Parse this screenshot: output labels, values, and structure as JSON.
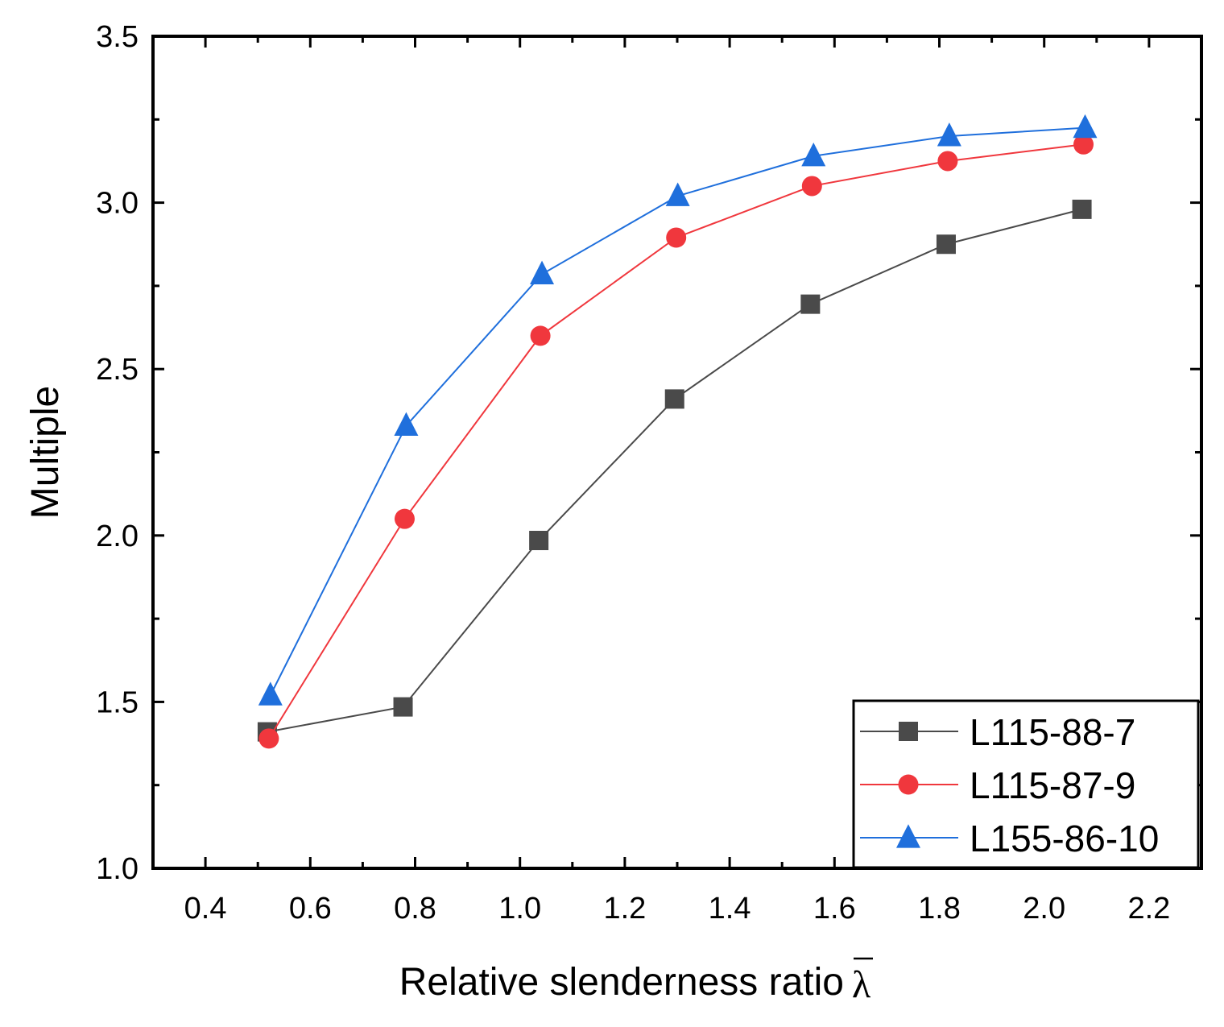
{
  "chart_data": {
    "type": "line",
    "title": "",
    "xlabel": "Relative slenderness ratio",
    "xlabel_symbol": "λ",
    "ylabel": "Multiple",
    "xlim": [
      0.3,
      2.3
    ],
    "ylim": [
      1.0,
      3.5
    ],
    "x_ticks": [
      "0.4",
      "0.6",
      "0.8",
      "1.0",
      "1.2",
      "1.4",
      "1.6",
      "1.8",
      "2.0",
      "2.2"
    ],
    "y_ticks": [
      "1.0",
      "1.5",
      "2.0",
      "2.5",
      "3.0",
      "3.5"
    ],
    "legend_position": "bottom-right",
    "series": [
      {
        "name": "L115-88-7",
        "color": "#4a4a4a",
        "marker": "square",
        "x": [
          0.518,
          0.777,
          1.036,
          1.295,
          1.554,
          1.813,
          2.072
        ],
        "y": [
          1.41,
          1.485,
          1.985,
          2.41,
          2.695,
          2.875,
          2.98
        ]
      },
      {
        "name": "L115-87-9",
        "color": "#f0373d",
        "marker": "circle",
        "x": [
          0.521,
          0.78,
          1.039,
          1.298,
          1.557,
          1.816,
          2.075
        ],
        "y": [
          1.39,
          2.05,
          2.6,
          2.895,
          3.05,
          3.125,
          3.175
        ]
      },
      {
        "name": "L155-86-10",
        "color": "#1f6fdc",
        "marker": "triangle",
        "x": [
          0.524,
          0.783,
          1.042,
          1.301,
          1.56,
          1.819,
          2.078
        ],
        "y": [
          1.52,
          2.33,
          2.785,
          3.02,
          3.14,
          3.2,
          3.225
        ]
      }
    ]
  }
}
